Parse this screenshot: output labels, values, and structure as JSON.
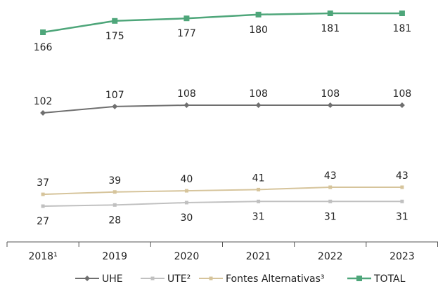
{
  "chart_data": {
    "type": "line",
    "categories": [
      "2018¹",
      "2019",
      "2020",
      "2021",
      "2022",
      "2023"
    ],
    "series": [
      {
        "name": "UHE",
        "values": [
          102,
          107,
          108,
          108,
          108,
          108
        ],
        "color": "#6f6f6f",
        "marker": "diamond",
        "label_pos": "above"
      },
      {
        "name": "UTE²",
        "values": [
          27,
          28,
          30,
          31,
          31,
          31
        ],
        "color": "#c0c0c0",
        "marker": "square",
        "label_pos": "below"
      },
      {
        "name": "Fontes Alternativas³",
        "values": [
          37,
          39,
          40,
          41,
          43,
          43
        ],
        "color": "#d6c49b",
        "marker": "square",
        "label_pos": "above"
      },
      {
        "name": "TOTAL",
        "values": [
          166,
          175,
          177,
          180,
          181,
          181
        ],
        "color": "#4ea67a",
        "marker": "square",
        "label_pos": "below"
      }
    ],
    "title": "",
    "xlabel": "",
    "ylabel": "",
    "legend": "bottom",
    "grid": false
  }
}
